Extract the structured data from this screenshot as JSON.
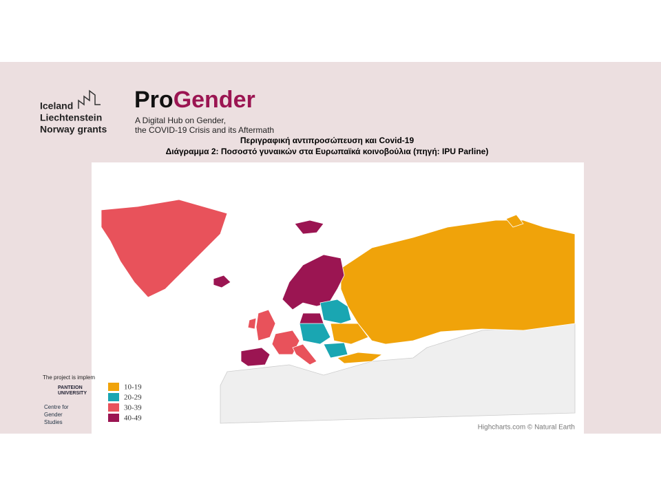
{
  "header": {
    "grants": [
      "Iceland",
      "Liechtenstein",
      "Norway grants"
    ],
    "logo": {
      "pro": "Pro",
      "gender": "Gender"
    },
    "tagline": [
      "A Digital Hub on Gender,",
      "the COVID-19 Crisis and its Aftermath"
    ]
  },
  "title": [
    "Περιγραφική αντιπροσώπευση και Covid-19",
    "Διάγραμμα 2: Ποσοστό γυναικών στα Ευρωπαϊκά κοινοβούλια (πηγή: IPU Parline)"
  ],
  "legend": [
    {
      "label": "10-19",
      "color": "#f0a30a"
    },
    {
      "label": "20-29",
      "color": "#1aa6b2"
    },
    {
      "label": "30-39",
      "color": "#e8525b"
    },
    {
      "label": "40-49",
      "color": "#9b1552"
    }
  ],
  "credits": "Highcharts.com © Natural Earth",
  "footer": {
    "implemented": "The project is implem",
    "university": [
      "PANTEION",
      "UNIVERSITY"
    ],
    "centre": [
      "Centre for",
      "Gender",
      "Studies"
    ]
  }
}
